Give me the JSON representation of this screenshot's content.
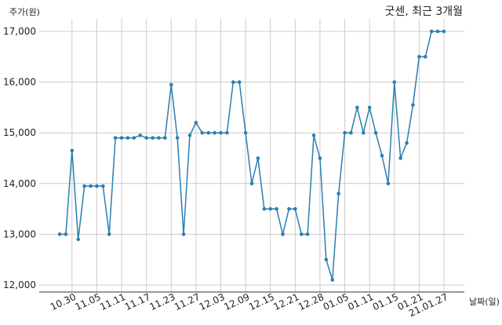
{
  "chart_data": {
    "type": "line",
    "title": "굿센, 최근 3개월",
    "xlabel": "날짜(일)",
    "ylabel": "주가(원)",
    "ylim": [
      11850,
      17300
    ],
    "grid": true,
    "y_ticks": [
      {
        "value": 12000,
        "label": "12,000"
      },
      {
        "value": 13000,
        "label": "13,000"
      },
      {
        "value": 14000,
        "label": "14,000"
      },
      {
        "value": 15000,
        "label": "15,000"
      },
      {
        "value": 16000,
        "label": "16,000"
      },
      {
        "value": 17000,
        "label": "17,000"
      }
    ],
    "x_ticks": [
      {
        "index": 2,
        "label": "10.30"
      },
      {
        "index": 6,
        "label": "11.05"
      },
      {
        "index": 10,
        "label": "11.11"
      },
      {
        "index": 14,
        "label": "11.17"
      },
      {
        "index": 18,
        "label": "11.23"
      },
      {
        "index": 22,
        "label": "11.27"
      },
      {
        "index": 26,
        "label": "12.03"
      },
      {
        "index": 30,
        "label": "12.09"
      },
      {
        "index": 34,
        "label": "12.15"
      },
      {
        "index": 38,
        "label": "12.21"
      },
      {
        "index": 42,
        "label": "12.28"
      },
      {
        "index": 46,
        "label": "01.05"
      },
      {
        "index": 50,
        "label": "01.11"
      },
      {
        "index": 54,
        "label": "01.15"
      },
      {
        "index": 58,
        "label": "01.21"
      },
      {
        "index": 62,
        "label": "21.01.27"
      }
    ],
    "series": [
      {
        "color": "#2a7fb0",
        "values": [
          13000,
          13000,
          14650,
          12900,
          13950,
          13950,
          13950,
          13950,
          13000,
          14900,
          14900,
          14900,
          14900,
          14950,
          14900,
          14900,
          14900,
          14900,
          15950,
          14900,
          13000,
          14950,
          15200,
          15000,
          15000,
          15000,
          15000,
          15000,
          16000,
          16000,
          15000,
          14000,
          14500,
          13500,
          13500,
          13500,
          13000,
          13500,
          13500,
          13000,
          13000,
          14950,
          14500,
          12500,
          12100,
          13800,
          15000,
          15000,
          15500,
          15000,
          15500,
          15000,
          14550,
          14000,
          16000,
          14500,
          14800,
          15550,
          16500,
          16500,
          17000,
          17000,
          17000
        ]
      }
    ]
  }
}
